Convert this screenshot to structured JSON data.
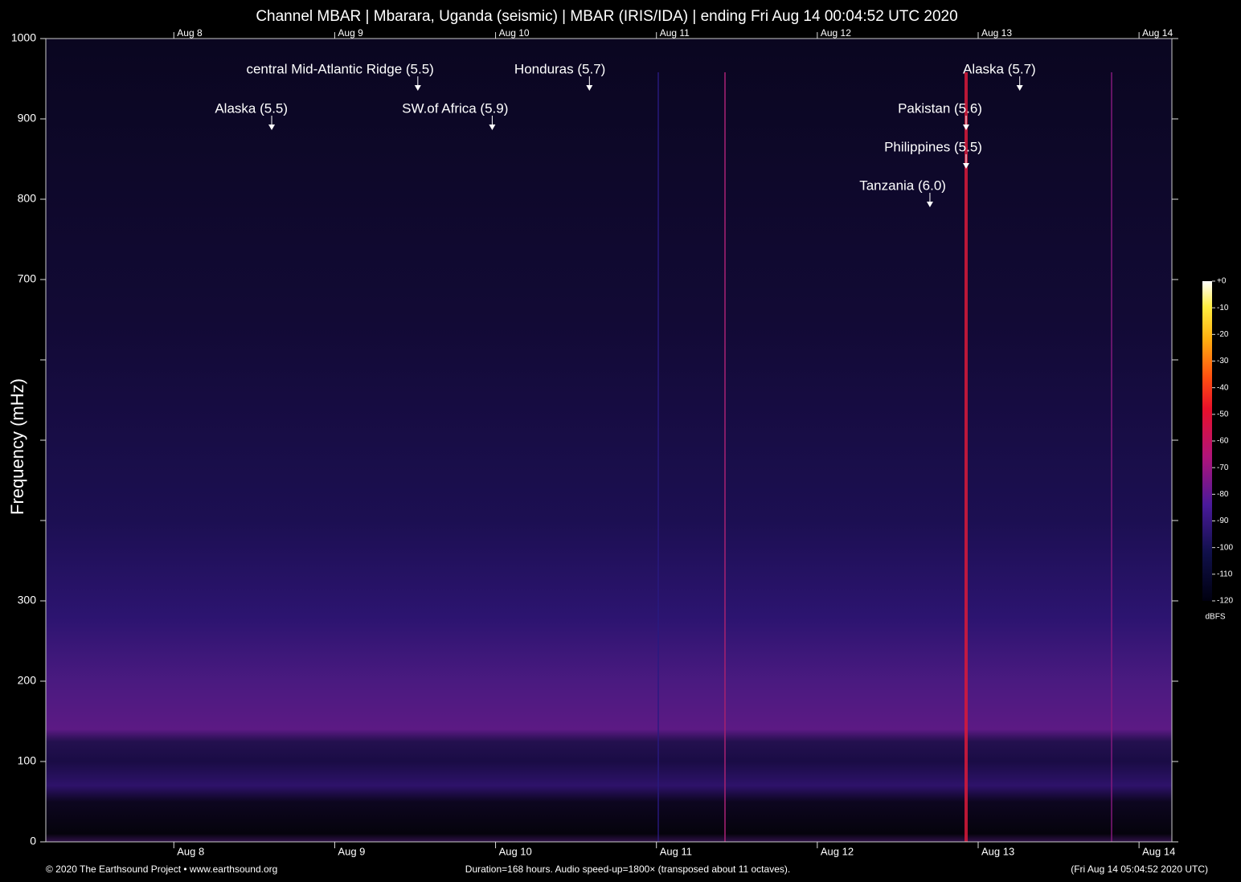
{
  "chart_data": {
    "type": "spectrogram",
    "title": "Channel MBAR | Mbarara, Uganda (seismic) | MBAR (IRIS/IDA) | ending Fri Aug 14 00:04:52 UTC 2020",
    "y_label": "Frequency (mHz)",
    "xlim": [
      0,
      168
    ],
    "xticks": [
      {
        "value": 19.1,
        "label": "Aug 8"
      },
      {
        "value": 43.1,
        "label": "Aug 9"
      },
      {
        "value": 67.1,
        "label": "Aug 10"
      },
      {
        "value": 91.1,
        "label": "Aug 11"
      },
      {
        "value": 115.1,
        "label": "Aug 12"
      },
      {
        "value": 139.1,
        "label": "Aug 13"
      },
      {
        "value": 163.1,
        "label": "Aug 14"
      }
    ],
    "ylim": [
      0,
      1000
    ],
    "yticks": [
      0,
      100,
      200,
      300,
      700,
      800,
      900,
      1000
    ],
    "y_unlabeled_ticks": [
      400,
      500,
      600
    ],
    "annotations": [
      {
        "label": "central Mid-Atlantic Ridge (5.5)",
        "x": 55.5,
        "y": 935
      },
      {
        "label": "Honduras (5.7)",
        "x": 81.1,
        "y": 935
      },
      {
        "label": "Alaska (5.7)",
        "x": 145.3,
        "y": 935
      },
      {
        "label": "Alaska (5.5)",
        "x": 33.7,
        "y": 886
      },
      {
        "label": "SW.of Africa (5.9)",
        "x": 66.6,
        "y": 886
      },
      {
        "label": "Pakistan (5.6)",
        "x": 137.3,
        "y": 886
      },
      {
        "label": "Philippines (5.5)",
        "x": 137.3,
        "y": 838
      },
      {
        "label": "Tanzania (6.0)",
        "x": 131.9,
        "y": 790
      }
    ],
    "colorbar": {
      "label": "dBFS",
      "lim": [
        -120,
        0
      ],
      "ticks": [
        {
          "value": 0,
          "label": "+0"
        },
        -10,
        -20,
        -30,
        -40,
        -50,
        -60,
        -70,
        -80,
        -90,
        -100,
        -110,
        -120
      ]
    },
    "footer_left": "© 2020 The Earthsound Project • www.earthsound.org",
    "footer_center": "Duration=168 hours. Audio speed-up=1800× (transposed about 11 octaves).",
    "footer_right": "(Fri Aug 14 05:04:52 2020 UTC)"
  }
}
